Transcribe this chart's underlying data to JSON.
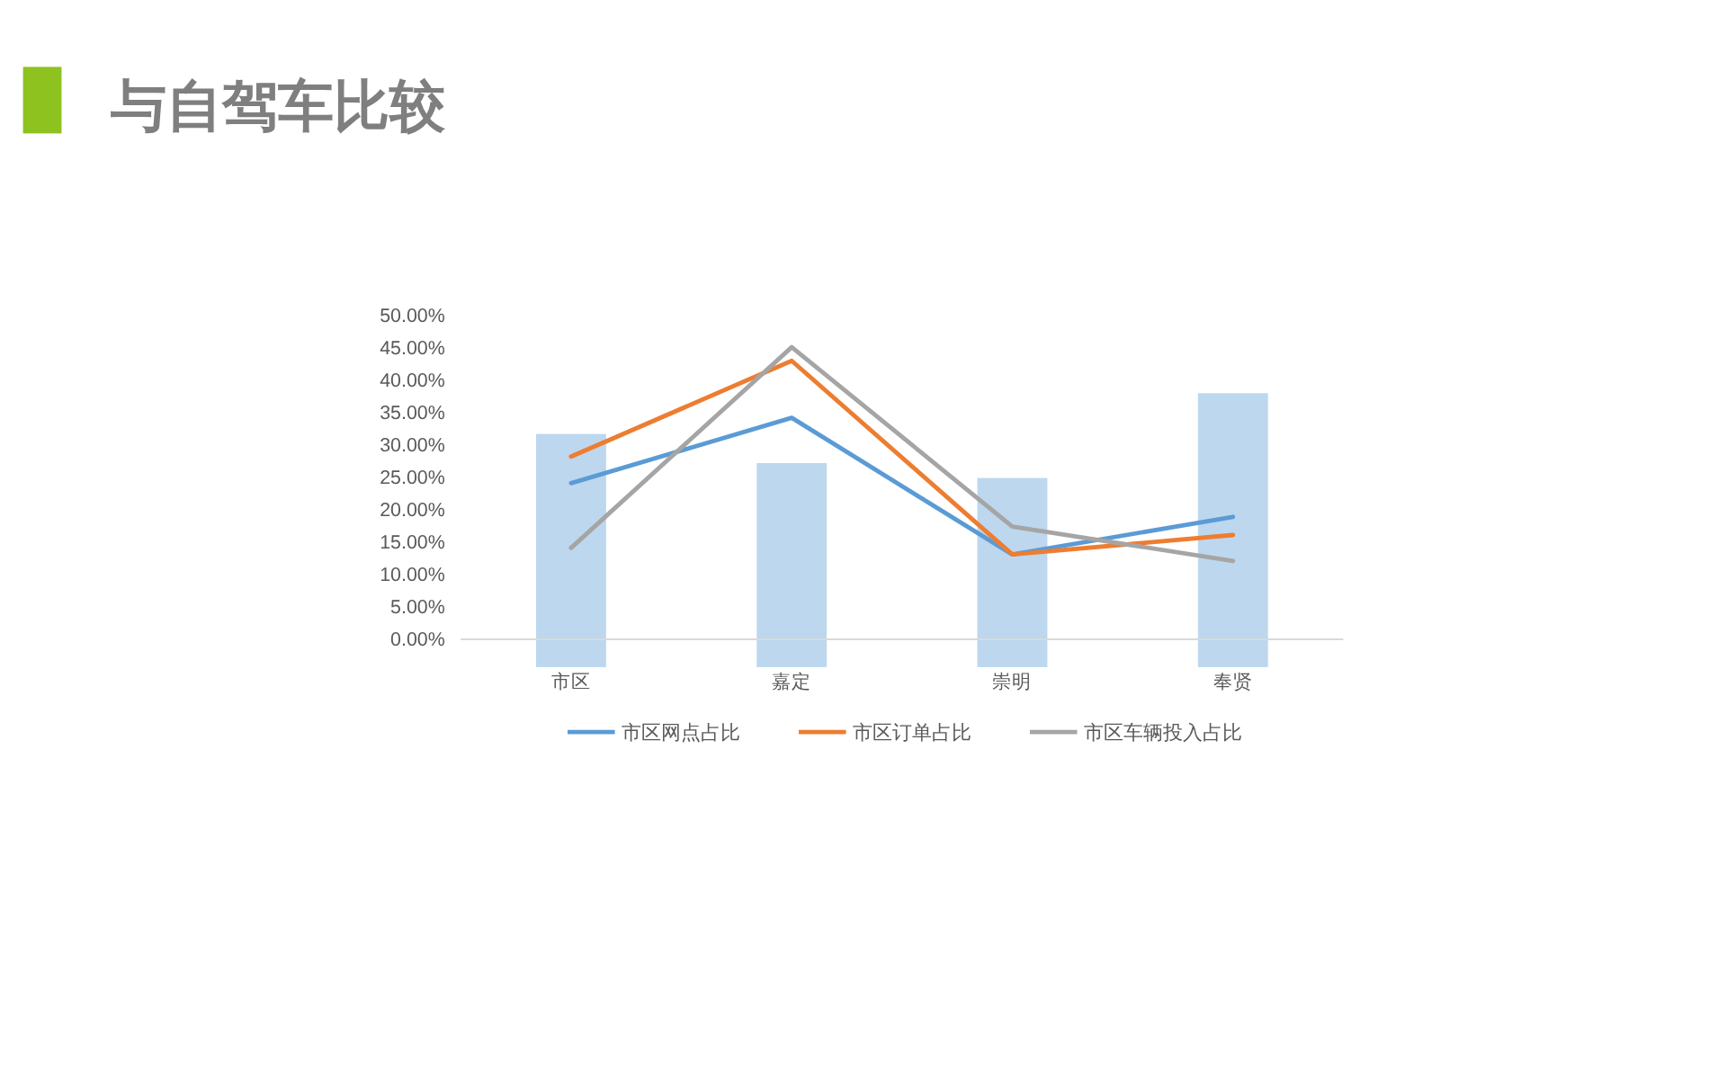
{
  "chart_data": {
    "type": "line",
    "title": "与自驾车比较",
    "categories": [
      "市区",
      "嘉定",
      "崇明",
      "奉贤"
    ],
    "series": [
      {
        "type": "bar",
        "color": "#bdd7ee",
        "values": [
          36.0,
          31.5,
          29.2,
          42.3
        ],
        "base": [
          -4.3,
          -4.3,
          -4.3,
          -4.3
        ]
      },
      {
        "name": "市区网点占比",
        "color": "#5b9bd5",
        "values": [
          24.1,
          34.2,
          13.1,
          18.9
        ]
      },
      {
        "name": "市区订单占比",
        "color": "#ed7d31",
        "values": [
          28.2,
          43.0,
          13.1,
          16.1
        ]
      },
      {
        "name": "市区车辆投入占比",
        "color": "#a5a5a5",
        "values": [
          14.1,
          45.1,
          17.4,
          12.1
        ]
      }
    ],
    "ylim": [
      -4.3,
      50
    ],
    "yticks": [
      {
        "value": 0,
        "label": "0.00%"
      },
      {
        "value": 5,
        "label": "5.00%"
      },
      {
        "value": 10,
        "label": "10.00%"
      },
      {
        "value": 15,
        "label": "15.00%"
      },
      {
        "value": 20,
        "label": "20.00%"
      },
      {
        "value": 25,
        "label": "25.00%"
      },
      {
        "value": 30,
        "label": "30.00%"
      },
      {
        "value": 35,
        "label": "35.00%"
      },
      {
        "value": 40,
        "label": "40.00%"
      },
      {
        "value": 45,
        "label": "45.00%"
      },
      {
        "value": 50,
        "label": "50.00%"
      }
    ],
    "grid": false,
    "legend": "bottom",
    "marker": "none",
    "line_style": "solid"
  }
}
